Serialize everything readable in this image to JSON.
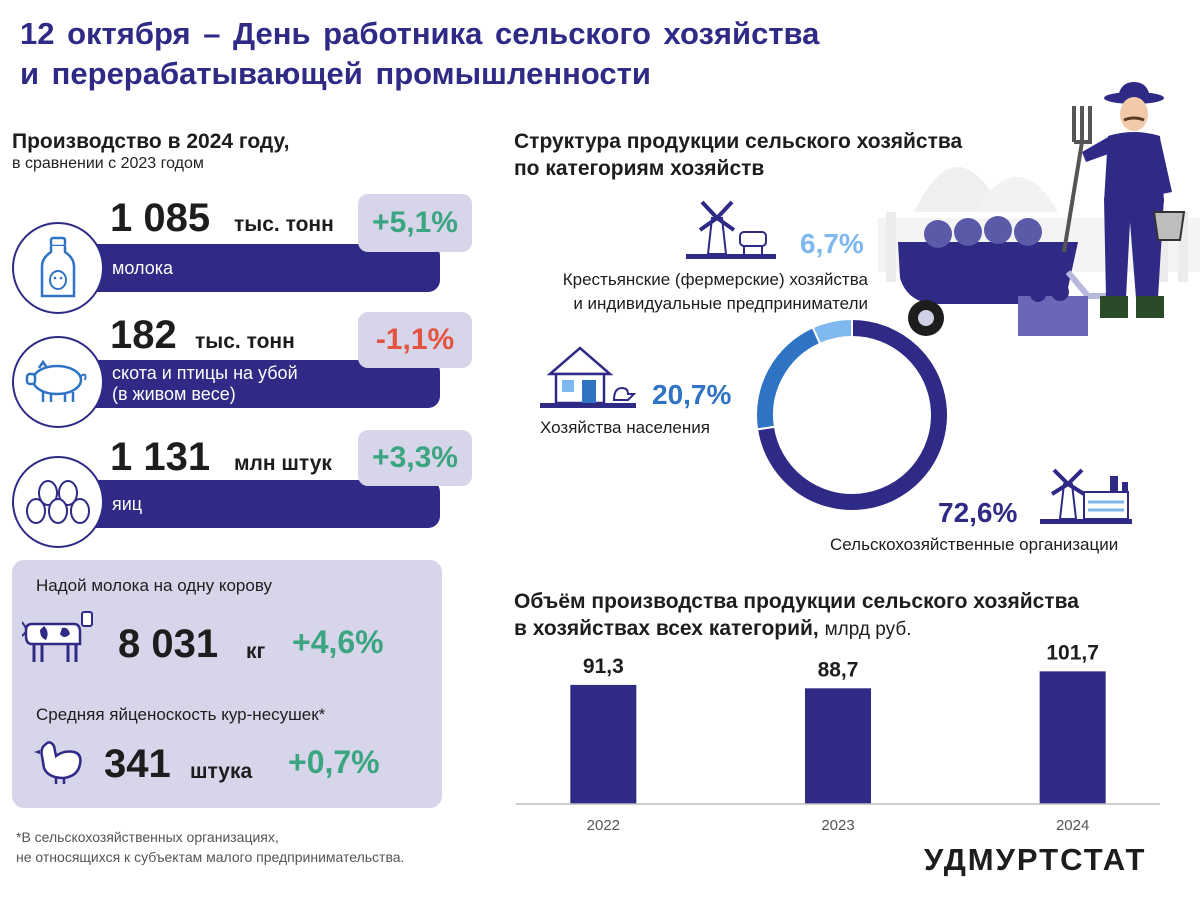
{
  "header": {
    "title_line1": "12 октября – День работника сельского хозяйства",
    "title_line2": "и перерабатывающей промышленности"
  },
  "production": {
    "heading": "Производство в 2024 году,",
    "subheading": "в сравнении с 2023 годом",
    "items": [
      {
        "value": "1 085",
        "unit": "тыс. тонн",
        "label": "молока",
        "label2": "",
        "change": "+5,1%",
        "icon": "milk-bottle-icon"
      },
      {
        "value": "182",
        "unit": "тыс. тонн",
        "label": "скота и птицы на убой",
        "label2": "(в живом весе)",
        "change": "-1,1%",
        "icon": "pig-icon"
      },
      {
        "value": "1 131",
        "unit": "млн штук",
        "label": "яиц",
        "label2": "",
        "change": "+3,3%",
        "icon": "eggs-icon"
      }
    ]
  },
  "productivity": {
    "milk_label": "Надой молока на одну корову",
    "milk_value": "8 031",
    "milk_unit": "кг",
    "milk_change": "+4,6%",
    "egg_label": "Средняя яйценоскость кур-несушек*",
    "egg_value": "341",
    "egg_unit": "штука",
    "egg_change": "+0,7%"
  },
  "structure": {
    "heading_line1": "Структура продукции сельского хозяйства",
    "heading_line2": "по категориям хозяйств",
    "segments": [
      {
        "pct": "6,7%",
        "value": 6.7,
        "color": "#7fb8ee",
        "label1": "Крестьянские (фермерские) хозяйства",
        "label2": "и индивидуальные предприниматели"
      },
      {
        "pct": "20,7%",
        "value": 20.7,
        "color": "#2f73c4",
        "label1": "Хозяйства населения",
        "label2": ""
      },
      {
        "pct": "72,6%",
        "value": 72.6,
        "color": "#2e2a85",
        "label1": "Сельскохозяйственные организации",
        "label2": ""
      }
    ]
  },
  "volume": {
    "heading_line1": "Объём производства продукции сельского хозяйства",
    "heading_line2": "в хозяйствах всех категорий,",
    "unit": "млрд руб."
  },
  "chart_data": {
    "type": "bar",
    "categories": [
      "2022",
      "2023",
      "2024"
    ],
    "values": [
      91.3,
      88.7,
      101.7
    ],
    "value_labels": [
      "91,3",
      "88,7",
      "101,7"
    ],
    "title": "Объём производства продукции сельского хозяйства в хозяйствах всех категорий, млрд руб.",
    "ylim": [
      0,
      115
    ],
    "grid": false,
    "color": "#2e2a85"
  },
  "footnote": {
    "line1": "*В сельскохозяйственных организациях,",
    "line2": "не относящихся к субъектам малого предпринимательства."
  },
  "logo": "УДМУРТСТАТ",
  "colors": {
    "primary": "#2e2a85",
    "positive": "#3aa580",
    "negative": "#e2543f",
    "panel": "#d7d5ea"
  }
}
